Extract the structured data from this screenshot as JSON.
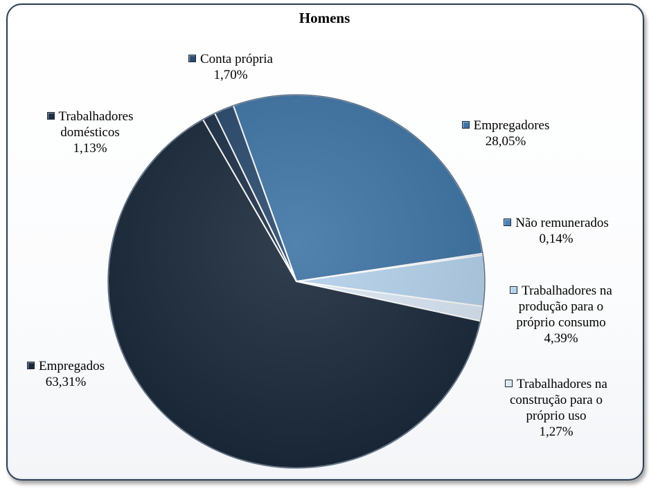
{
  "chart_data": {
    "type": "pie",
    "title": "Homens",
    "slices": [
      {
        "label_lines": [
          "Empregadores"
        ],
        "pct_label": "28,05%",
        "value": 28.05,
        "color": "#3f74a5"
      },
      {
        "label_lines": [
          "Não remunerados"
        ],
        "pct_label": "0,14%",
        "value": 0.14,
        "color": "#4a82b8"
      },
      {
        "label_lines": [
          "Trabalhadores na",
          "produção para o",
          "próprio consumo"
        ],
        "pct_label": "4,39%",
        "value": 4.39,
        "color": "#b4d2ec"
      },
      {
        "label_lines": [
          "Trabalhadores na",
          "construção para o",
          "próprio uso"
        ],
        "pct_label": "1,27%",
        "value": 1.27,
        "color": "#dbe8f5"
      },
      {
        "label_lines": [
          "Empregados"
        ],
        "pct_label": "63,31%",
        "value": 63.31,
        "color": "#1b2a3c"
      },
      {
        "label_lines": [
          "Trabalhadores",
          "domésticos"
        ],
        "pct_label": "1,13%",
        "value": 1.13,
        "color": "#1e3048"
      },
      {
        "label_lines": [
          "Conta própria"
        ],
        "pct_label": "1,70%",
        "value": 1.7,
        "color": "#2a4a6e"
      }
    ],
    "start_angle_deg": -19.6,
    "legend": "data-labels"
  }
}
